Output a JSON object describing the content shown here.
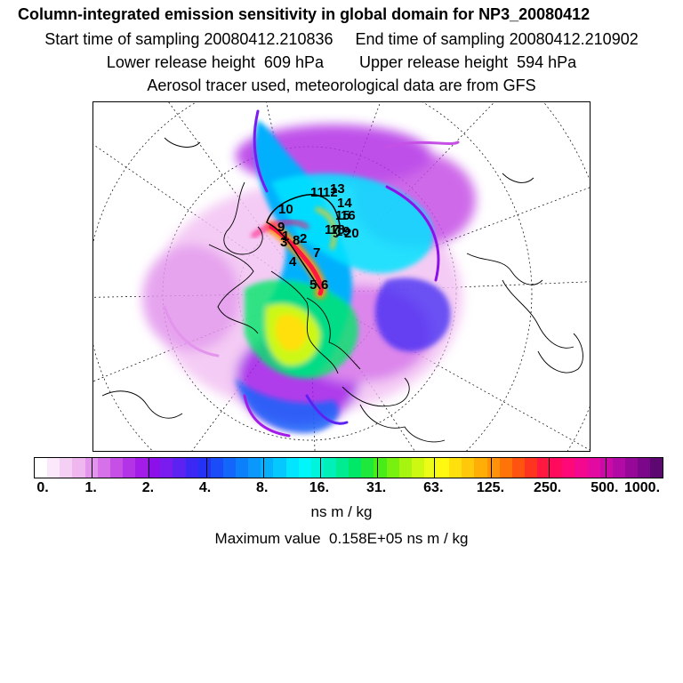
{
  "title": "Column-integrated emission sensitivity in global domain for NP3_20080412",
  "sampling_line": "Start time of sampling 20080412.210836     End time of sampling 20080412.210902",
  "release_line": "Lower release height  609 hPa        Upper release height  594 hPa",
  "tracer_line": "Aerosol tracer used, meteorological data are from GFS",
  "trajectory_labels": [
    "1",
    "2",
    "3",
    "4",
    "5",
    "6",
    "7",
    "8",
    "9",
    "10",
    "11",
    "12",
    "13",
    "14",
    "15",
    "16",
    "17",
    "18",
    "19",
    "20"
  ],
  "colorbar": {
    "tick_labels": [
      "0.",
      "1.",
      "2.",
      "4.",
      "8.",
      "16.",
      "31.",
      "63.",
      "125.",
      "250.",
      "500.",
      "1000."
    ],
    "colors": [
      "#ffffff",
      "#fbe8fb",
      "#f5d0f5",
      "#efb6f0",
      "#e394ec",
      "#d671e9",
      "#c650e6",
      "#b333e6",
      "#a31ce8",
      "#8c10ea",
      "#7a1cf0",
      "#5c22f2",
      "#3c28f4",
      "#2432f6",
      "#1a4cf8",
      "#1266fa",
      "#0c80fb",
      "#0a98fc",
      "#06b0fd",
      "#04c8fe",
      "#02e4ff",
      "#00f6f8",
      "#00f4dc",
      "#00f0b8",
      "#00ec90",
      "#00e868",
      "#1ee83c",
      "#48ec18",
      "#78f010",
      "#a6f410",
      "#ccf812",
      "#ecfc16",
      "#fff810",
      "#ffe00c",
      "#ffc80a",
      "#ffae08",
      "#ff9208",
      "#ff7408",
      "#ff5410",
      "#ff3420",
      "#ff1840",
      "#ff0a5c",
      "#ff0878",
      "#f40890",
      "#e20aa0",
      "#cc0aa8",
      "#b20aa4",
      "#960898",
      "#7a0888",
      "#5c0870"
    ],
    "unit": "ns m / kg"
  },
  "max_value_line": "Maximum value  0.158E+05 ns m / kg"
}
